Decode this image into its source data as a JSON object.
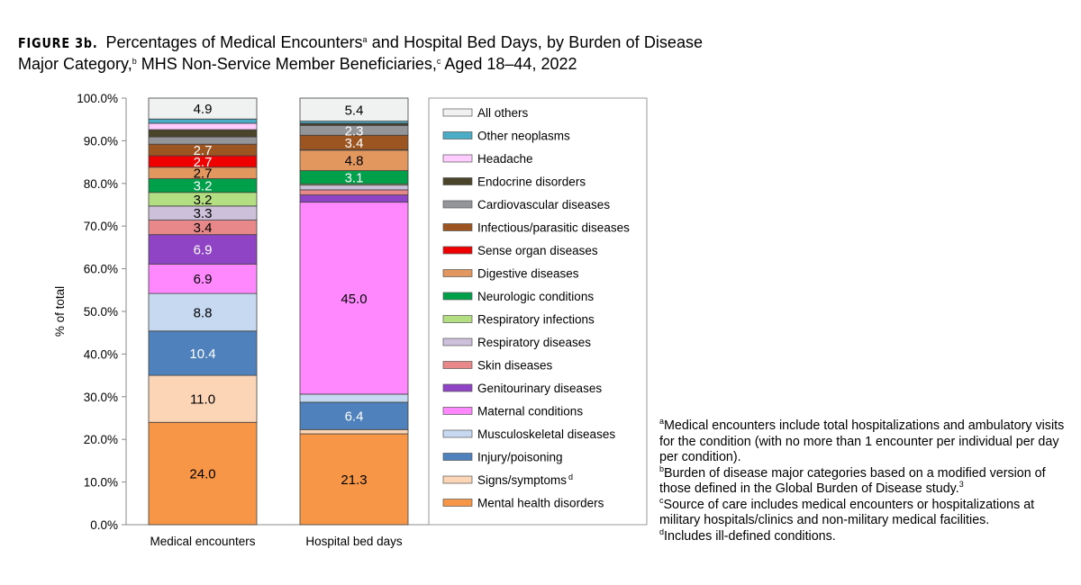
{
  "title": {
    "figure_label": "FIGURE 3b.",
    "parts": [
      "Percentages of Medical Encounters",
      "a",
      " and Hospital Bed Days, by Burden of Disease Major Category,",
      "b",
      " MHS Non-Service Member Beneficiaries,",
      "c",
      " Aged 18–44, 2022"
    ]
  },
  "chart_data": {
    "type": "bar",
    "stacked": true,
    "categories": [
      "Medical encounters",
      "Hospital bed days"
    ],
    "ylabel": "% of total",
    "ylim": [
      0,
      100
    ],
    "yticks": [
      "0.0%",
      "10.0%",
      "20.0%",
      "30.0%",
      "40.0%",
      "50.0%",
      "60.0%",
      "70.0%",
      "80.0%",
      "90.0%",
      "100.0%"
    ],
    "grid": false,
    "legend_placement": "right",
    "series": [
      {
        "name": "Mental health disorders",
        "color": "#F79646",
        "label_color": "#000",
        "values": [
          24.0,
          21.3
        ],
        "labels": [
          "24.0",
          "21.3"
        ]
      },
      {
        "name": "Signs/symptoms",
        "sup": "d",
        "color": "#FBD5B5",
        "label_color": "#000",
        "values": [
          11.0,
          1.0
        ],
        "labels": [
          "11.0",
          null
        ]
      },
      {
        "name": "Injury/poisoning",
        "color": "#4F81BD",
        "label_color": "#fff",
        "values": [
          10.4,
          6.4
        ],
        "labels": [
          "10.4",
          "6.4"
        ]
      },
      {
        "name": "Musculoskeletal diseases",
        "color": "#C6D9F1",
        "label_color": "#000",
        "values": [
          8.8,
          1.9
        ],
        "labels": [
          "8.8",
          null
        ]
      },
      {
        "name": "Maternal conditions",
        "color": "#FF88FF",
        "label_color": "#000",
        "values": [
          6.9,
          45.0
        ],
        "labels": [
          "6.9",
          "45.0"
        ]
      },
      {
        "name": "Genitourinary diseases",
        "color": "#8E44C4",
        "label_color": "#fff",
        "values": [
          6.9,
          1.7
        ],
        "labels": [
          "6.9",
          null
        ]
      },
      {
        "name": "Skin diseases",
        "color": "#E8888A",
        "label_color": "#000",
        "values": [
          3.4,
          1.2
        ],
        "labels": [
          "3.4",
          null
        ]
      },
      {
        "name": "Respiratory diseases",
        "color": "#CCC0DA",
        "label_color": "#000",
        "values": [
          3.3,
          1.1
        ],
        "labels": [
          "3.3",
          null
        ]
      },
      {
        "name": "Respiratory infections",
        "color": "#B3DE81",
        "label_color": "#000",
        "values": [
          3.2,
          0.3
        ],
        "labels": [
          "3.2",
          null
        ]
      },
      {
        "name": "Neurologic conditions",
        "color": "#00A04A",
        "label_color": "#fff",
        "values": [
          3.2,
          3.1
        ],
        "labels": [
          "3.2",
          "3.1"
        ]
      },
      {
        "name": "Digestive diseases",
        "color": "#E2975E",
        "label_color": "#000",
        "values": [
          2.7,
          4.8
        ],
        "labels": [
          "2.7",
          "4.8"
        ]
      },
      {
        "name": "Sense organ diseases",
        "color": "#EE0000",
        "label_color": "#fff",
        "values": [
          2.7,
          0.1
        ],
        "labels": [
          "2.7",
          null
        ]
      },
      {
        "name": "Infectious/parasitic diseases",
        "color": "#9C5520",
        "label_color": "#fff",
        "values": [
          2.7,
          3.4
        ],
        "labels": [
          "2.7",
          "3.4"
        ]
      },
      {
        "name": "Cardiovascular diseases",
        "color": "#939598",
        "label_color": "#fff",
        "values": [
          1.7,
          2.3
        ],
        "labels": [
          null,
          "2.3"
        ]
      },
      {
        "name": "Endocrine disorders",
        "color": "#4A442A",
        "label_color": "#fff",
        "values": [
          1.7,
          0.4
        ],
        "labels": [
          null,
          null
        ]
      },
      {
        "name": "Headache",
        "color": "#FFCCFF",
        "label_color": "#000",
        "values": [
          1.5,
          0.1
        ],
        "labels": [
          null,
          null
        ]
      },
      {
        "name": "Other neoplasms",
        "color": "#4BACC6",
        "label_color": "#000",
        "values": [
          1.0,
          0.5
        ],
        "labels": [
          null,
          null
        ]
      },
      {
        "name": "All others",
        "color": "#F0F1F1",
        "label_color": "#000",
        "values": [
          4.9,
          5.4
        ],
        "labels": [
          "4.9",
          "5.4"
        ]
      }
    ]
  },
  "footnotes": [
    {
      "sup": "a",
      "text": "Medical encounters include total hospitalizations and ambulatory visits for the condition (with no more than 1 encounter per individual per day per condition)."
    },
    {
      "sup": "b",
      "text": "Burden of disease major categories based on a modified version of those defined in the Global Burden of Disease study.",
      "ref": "3"
    },
    {
      "sup": "c",
      "text": "Source of care includes medical encounters or hospitalizations at military hospitals/clinics and non-military medical facilities."
    },
    {
      "sup": "d",
      "text": "Includes ill-defined conditions."
    }
  ]
}
